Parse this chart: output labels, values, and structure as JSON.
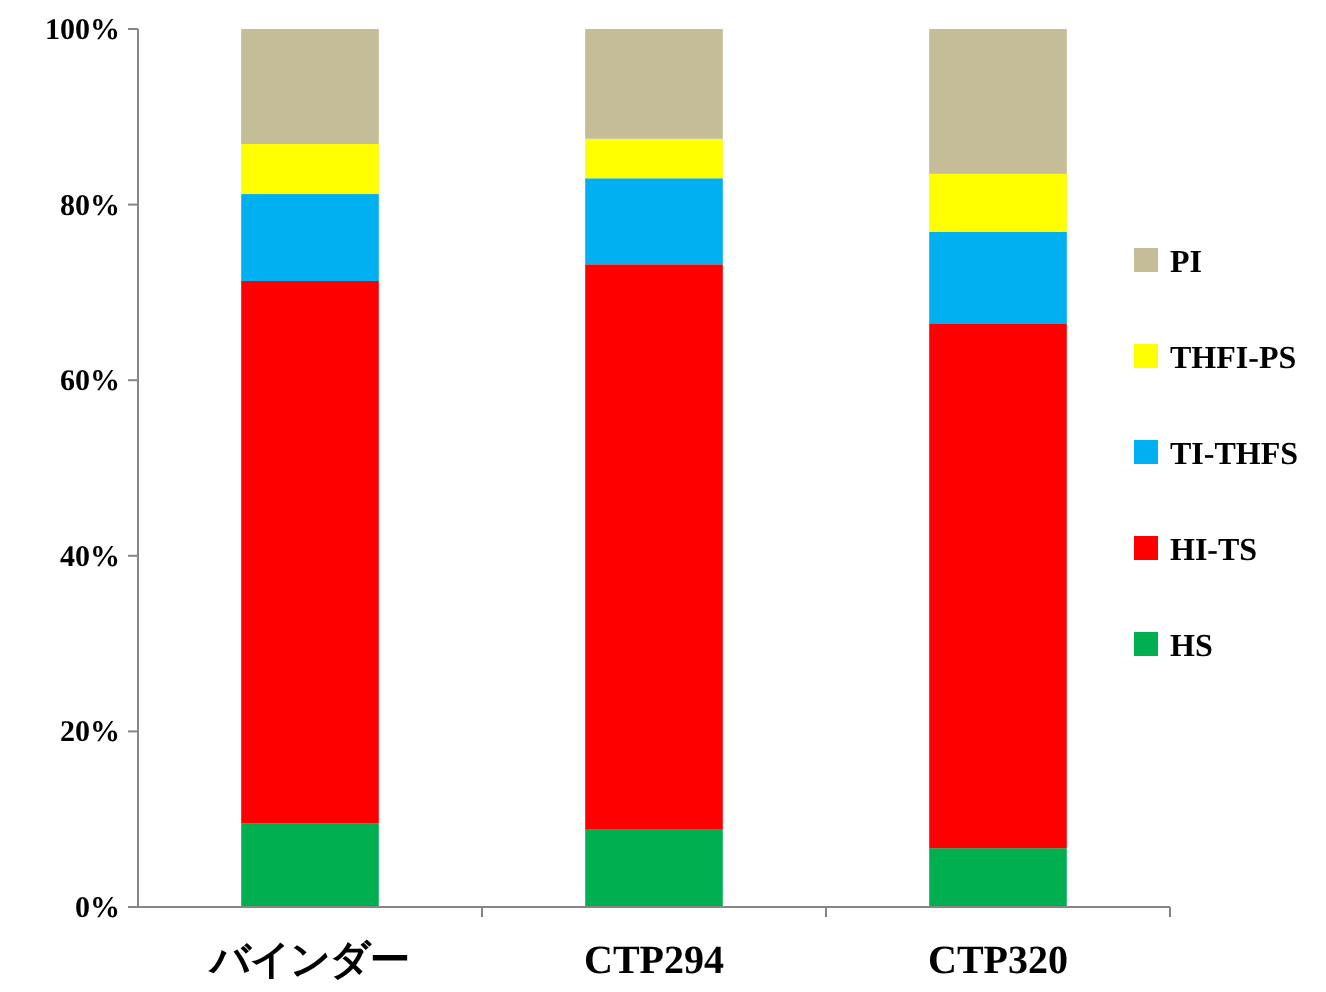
{
  "chart_data": {
    "type": "bar",
    "stacked": true,
    "categories": [
      "バインダー",
      "CTP294",
      "CTP320"
    ],
    "series": [
      {
        "name": "HS",
        "color": "#00b050",
        "values": [
          9.5,
          8.8,
          6.7
        ]
      },
      {
        "name": "HI-TS",
        "color": "#ff0000",
        "values": [
          61.8,
          64.4,
          59.7
        ]
      },
      {
        "name": "TI-THFS",
        "color": "#00b0f0",
        "values": [
          9.9,
          9.8,
          10.5
        ]
      },
      {
        "name": "THFI-PS",
        "color": "#ffff00",
        "values": [
          5.7,
          4.5,
          6.6
        ]
      },
      {
        "name": "PI",
        "color": "#c4bd97",
        "values": [
          13.1,
          12.5,
          16.5
        ]
      }
    ],
    "ylim": [
      0,
      100
    ],
    "yticks": [
      {
        "value": 0,
        "label": "0%"
      },
      {
        "value": 20,
        "label": "20%"
      },
      {
        "value": 40,
        "label": "40%"
      },
      {
        "value": 60,
        "label": "60%"
      },
      {
        "value": 80,
        "label": "80%"
      },
      {
        "value": 100,
        "label": "100%"
      }
    ],
    "grid": false,
    "legend": "right"
  }
}
